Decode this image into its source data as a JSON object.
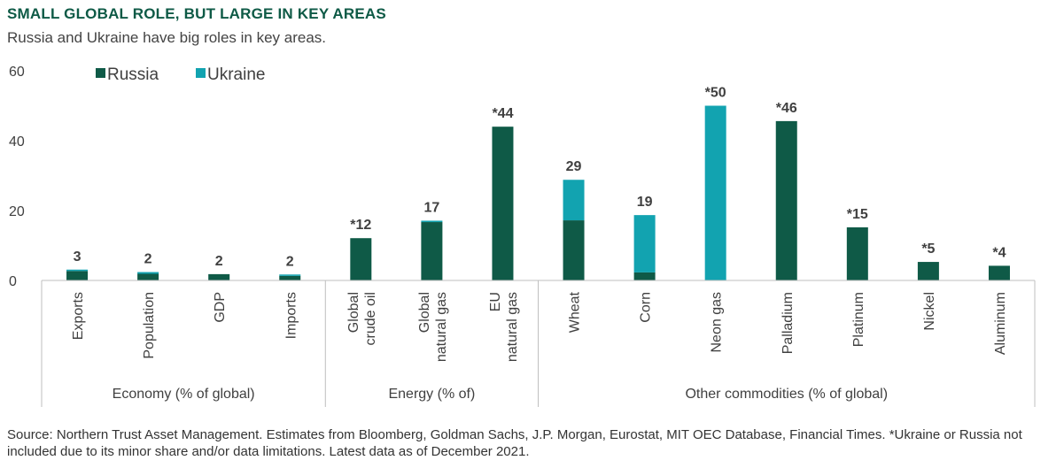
{
  "title": "SMALL GLOBAL ROLE, BUT LARGE IN KEY AREAS",
  "subtitle": "Russia and Ukraine have big roles in key areas.",
  "source": "Source: Northern Trust Asset Management. Estimates from Bloomberg, Goldman Sachs, J.P. Morgan, Eurostat, MIT OEC Database, Financial Times. *Ukraine or Russia not included due to its minor share and/or data limitations. Latest data as of December 2021.",
  "colors": {
    "russia": "#0f5a47",
    "ukraine": "#12a3b0",
    "axis": "#bfbfbf",
    "text": "#404040"
  },
  "chart_data": {
    "type": "bar",
    "stacked": true,
    "categories": [
      "Exports",
      "Population",
      "GDP",
      "Imports",
      "Global\ncrude oil",
      "Global\nnatural gas",
      "EU\nnatural gas",
      "Wheat",
      "Corn",
      "Neon gas",
      "Palladium",
      "Platinum",
      "Nickel",
      "Aluminum"
    ],
    "groups": [
      {
        "label": "Economy (% of global)",
        "start": 0,
        "end": 3
      },
      {
        "label": "Energy (% of)",
        "start": 4,
        "end": 6
      },
      {
        "label": "Other commodities (% of global)",
        "start": 7,
        "end": 13
      }
    ],
    "series": [
      {
        "name": "Russia",
        "values": [
          2.7,
          1.9,
          1.8,
          1.3,
          12.1,
          16.7,
          44.0,
          17.2,
          2.3,
          0,
          45.6,
          15.2,
          5.3,
          4.2
        ]
      },
      {
        "name": "Ukraine",
        "values": [
          0.4,
          0.5,
          0,
          0.4,
          0,
          0.4,
          0,
          11.6,
          16.4,
          50.0,
          0,
          0,
          0,
          0
        ]
      }
    ],
    "data_labels": [
      "3",
      "2",
      "2",
      "2",
      "*12",
      "17",
      "*44",
      "29",
      "19",
      "*50",
      "*46",
      "*15",
      "*5",
      "*4"
    ],
    "yticks": [
      0,
      20,
      40,
      60
    ],
    "ylim": [
      0,
      60
    ],
    "legend_position": "top-left"
  }
}
